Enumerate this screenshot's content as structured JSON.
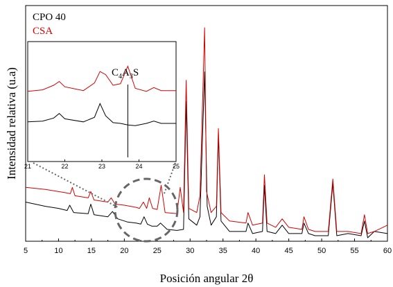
{
  "chart_data": [
    {
      "type": "line",
      "xlabel": "Posición angular 2θ",
      "ylabel": "Intensidad relativa (u.a)",
      "xlim": [
        5,
        60
      ],
      "xticks": [
        5,
        10,
        15,
        20,
        25,
        30,
        35,
        40,
        45,
        50,
        55,
        60
      ],
      "yticks": [],
      "grid": false,
      "legend_position": "top-left",
      "series": [
        {
          "name": "CPO 40",
          "color": "#000000",
          "x": [
            5,
            8,
            10,
            11.3,
            11.7,
            12.3,
            14.5,
            14.9,
            15.4,
            17.5,
            18.2,
            19,
            20.5,
            21.8,
            22.5,
            23,
            23.5,
            24.2,
            25,
            25.5,
            26.5,
            28,
            29,
            29.4,
            29.8,
            31,
            31.5,
            32.2,
            32.6,
            33.2,
            34,
            34.3,
            34.7,
            36,
            38.5,
            38.8,
            39.5,
            41,
            41.3,
            41.7,
            43,
            44,
            45,
            47,
            47.3,
            48,
            49,
            51,
            51.7,
            52.3,
            54,
            56,
            56.5,
            57,
            58,
            60
          ],
          "y": [
            0.17,
            0.15,
            0.14,
            0.13,
            0.155,
            0.12,
            0.115,
            0.16,
            0.11,
            0.1,
            0.125,
            0.09,
            0.075,
            0.07,
            0.065,
            0.1,
            0.065,
            0.055,
            0.055,
            0.07,
            0.04,
            0.035,
            0.04,
            0.65,
            0.09,
            0.06,
            0.1,
            0.79,
            0.15,
            0.06,
            0.1,
            0.49,
            0.08,
            0.03,
            0.03,
            0.07,
            0.02,
            0.03,
            0.25,
            0.03,
            0.02,
            0.06,
            0.02,
            0.02,
            0.07,
            0.02,
            0.01,
            0.01,
            0.26,
            0.01,
            0.02,
            0.01,
            0.08,
            0.0,
            0.03,
            0.02
          ]
        },
        {
          "name": "CSA",
          "color": "#d40000",
          "x": [
            5,
            8,
            11,
            11.8,
            12.1,
            12.5,
            14.5,
            14.9,
            15.4,
            17.5,
            18,
            18.6,
            20,
            21.8,
            22.3,
            22.9,
            23.4,
            23.8,
            24.3,
            25,
            25.6,
            26.2,
            28,
            28.5,
            29,
            29.4,
            29.8,
            31,
            31.5,
            32.2,
            32.5,
            33.2,
            34,
            34.3,
            34.7,
            36,
            38.5,
            38.8,
            39.5,
            41,
            41.3,
            41.7,
            43,
            44,
            45,
            47,
            47.3,
            48,
            49,
            51,
            51.7,
            52.3,
            54,
            56,
            56.5,
            57,
            58,
            60
          ],
          "y": [
            0.24,
            0.23,
            0.215,
            0.21,
            0.24,
            0.2,
            0.19,
            0.22,
            0.18,
            0.17,
            0.19,
            0.16,
            0.155,
            0.145,
            0.14,
            0.17,
            0.14,
            0.19,
            0.14,
            0.135,
            0.25,
            0.12,
            0.115,
            0.24,
            0.12,
            0.75,
            0.14,
            0.12,
            0.2,
            1.0,
            0.22,
            0.12,
            0.15,
            0.52,
            0.12,
            0.08,
            0.07,
            0.12,
            0.06,
            0.07,
            0.3,
            0.07,
            0.05,
            0.09,
            0.05,
            0.04,
            0.1,
            0.04,
            0.03,
            0.03,
            0.28,
            0.03,
            0.03,
            0.02,
            0.11,
            0.02,
            0.03,
            0.06
          ]
        }
      ],
      "annotations": []
    },
    {
      "type": "line",
      "inset": true,
      "xlim": [
        21,
        25
      ],
      "xticks": [
        21,
        22,
        23,
        24,
        25
      ],
      "annotations": [
        {
          "text_parts": [
            "C",
            "4",
            "A",
            "3",
            "S"
          ],
          "x": 23.7,
          "vertical_marker": true
        }
      ],
      "series": [
        {
          "name": "CPO 40",
          "color": "#000000",
          "x": [
            21.0,
            21.4,
            21.7,
            21.85,
            22.0,
            22.5,
            22.8,
            22.95,
            23.1,
            23.3,
            23.5,
            23.7,
            23.9,
            24.2,
            24.4,
            24.6,
            25.0
          ],
          "y": [
            0.22,
            0.23,
            0.27,
            0.33,
            0.26,
            0.22,
            0.28,
            0.46,
            0.3,
            0.21,
            0.2,
            0.18,
            0.17,
            0.2,
            0.23,
            0.2,
            0.2
          ]
        },
        {
          "name": "CSA",
          "color": "#d40000",
          "x": [
            21.0,
            21.4,
            21.7,
            21.85,
            22.0,
            22.5,
            22.8,
            22.95,
            23.1,
            23.3,
            23.5,
            23.7,
            23.9,
            24.2,
            24.4,
            24.6,
            25.0
          ],
          "y": [
            0.62,
            0.64,
            0.7,
            0.75,
            0.68,
            0.63,
            0.73,
            0.88,
            0.84,
            0.7,
            0.72,
            0.95,
            0.66,
            0.62,
            0.67,
            0.63,
            0.63
          ]
        }
      ]
    }
  ]
}
